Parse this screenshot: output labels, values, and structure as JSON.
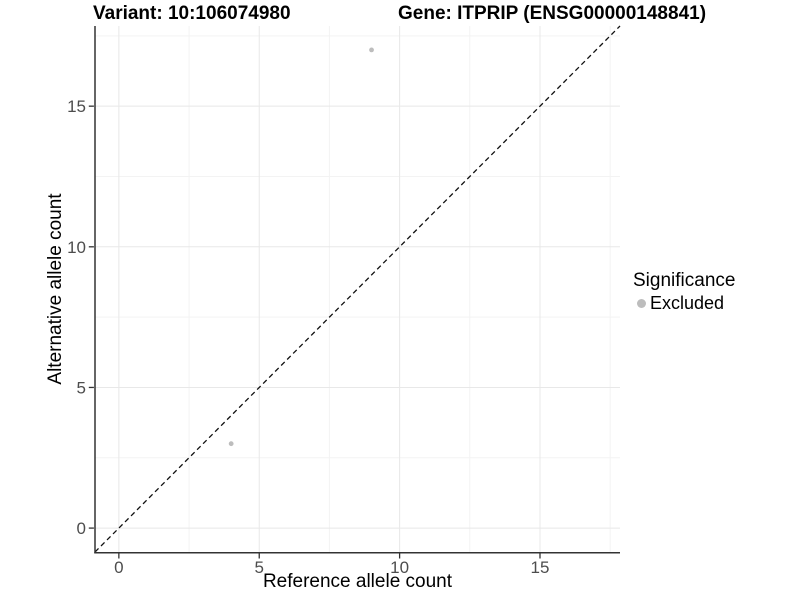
{
  "titles": {
    "variant": "Variant: 10:106074980",
    "gene": "Gene: ITPRIP (ENSG00000148841)"
  },
  "legend": {
    "title": "Significance",
    "items": [
      {
        "label": "Excluded",
        "color": "#bdbdbd"
      }
    ]
  },
  "chart_data": {
    "type": "scatter",
    "title": "Variant: 10:106074980   Gene: ITPRIP (ENSG00000148841)",
    "xlabel": "Reference allele count",
    "ylabel": "Alternative allele count",
    "xlim": [
      -0.85,
      17.85
    ],
    "ylim": [
      -0.85,
      17.85
    ],
    "x_ticks": [
      0,
      5,
      10,
      15
    ],
    "y_ticks": [
      0,
      5,
      10,
      15
    ],
    "x_minor_ticks": [
      2.5,
      7.5,
      12.5,
      17.5
    ],
    "y_minor_ticks": [
      2.5,
      7.5,
      12.5,
      17.5
    ],
    "grid": "major+minor",
    "legend_position": "right",
    "identity_line": {
      "type": "abline",
      "intercept": 0,
      "slope": 1,
      "style": "dashed",
      "color": "#111111"
    },
    "series": [
      {
        "name": "Excluded",
        "color": "#bdbdbd",
        "points": [
          {
            "x": 9,
            "y": 17
          },
          {
            "x": 4,
            "y": 3
          }
        ]
      }
    ],
    "colors": {
      "axis_line": "#333333",
      "tick_label": "#4d4d4d",
      "grid_major": "#e8e8e8",
      "grid_minor": "#f3f3f3",
      "background": "#ffffff"
    }
  }
}
